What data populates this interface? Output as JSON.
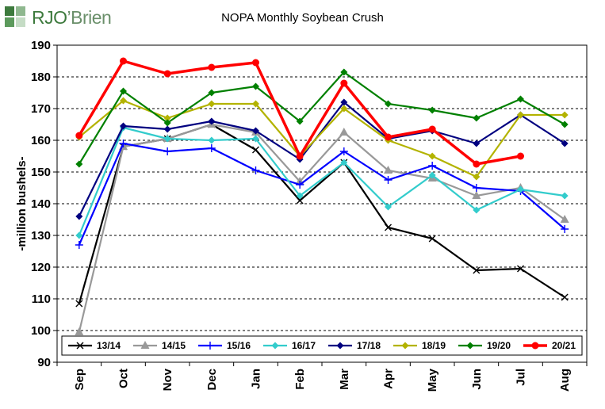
{
  "brand": {
    "logo_text_1": "RJO",
    "logo_text_2": "’Brien",
    "logo_colors": [
      "#3d7a3d",
      "#8fb88f",
      "#5c9a5c",
      "#c5dcc5"
    ]
  },
  "chart_data": {
    "type": "line",
    "title": "NOPA Monthly Soybean Crush",
    "xlabel": "",
    "ylabel": "-million bushels-",
    "categories": [
      "Sep",
      "Oct",
      "Nov",
      "Dec",
      "Jan",
      "Feb",
      "Mar",
      "Apr",
      "May",
      "Jun",
      "Jul",
      "Aug"
    ],
    "ylim": [
      90,
      190
    ],
    "yticks": [
      "90",
      "100",
      "110",
      "120",
      "130",
      "140",
      "150",
      "160",
      "170",
      "180",
      "190"
    ],
    "grid": "horizontal dashed",
    "legend_position": "bottom inside plot",
    "series": [
      {
        "name": "13/14",
        "color": "#000000",
        "marker": "x",
        "values": [
          108.5,
          158,
          160.5,
          165,
          157,
          141,
          153,
          132.5,
          129,
          119,
          119.5,
          110.5
        ]
      },
      {
        "name": "14/15",
        "color": "#999999",
        "marker": "triangle",
        "values": [
          99.5,
          158,
          160.5,
          165,
          162.5,
          147,
          162.5,
          150.5,
          148,
          142.5,
          145,
          135
        ]
      },
      {
        "name": "15/16",
        "color": "#0000ff",
        "marker": "plus",
        "values": [
          127,
          159,
          156.5,
          157.5,
          150.5,
          146,
          156.5,
          147.5,
          152,
          145,
          144,
          132
        ]
      },
      {
        "name": "16/17",
        "color": "#33cccc",
        "marker": "diamond",
        "values": [
          130,
          164,
          160.5,
          160,
          160.5,
          142.5,
          153,
          139,
          149,
          138,
          144.5,
          142.5
        ]
      },
      {
        "name": "17/18",
        "color": "#000080",
        "marker": "diamond",
        "values": [
          136,
          164.5,
          163.5,
          166,
          163,
          154,
          172,
          160.5,
          163,
          159,
          168,
          159
        ]
      },
      {
        "name": "18/19",
        "color": "#b3b300",
        "marker": "diamond",
        "values": [
          161,
          172.5,
          167,
          171.5,
          171.5,
          155,
          170,
          160,
          155,
          148.5,
          168,
          168
        ]
      },
      {
        "name": "19/20",
        "color": "#008000",
        "marker": "diamond",
        "values": [
          152.5,
          175.5,
          165.5,
          175,
          177,
          166,
          181.5,
          171.5,
          169.5,
          167,
          173,
          165
        ]
      },
      {
        "name": "20/21",
        "color": "#ff0000",
        "marker": "circle",
        "values": [
          161.5,
          185,
          181,
          183,
          184.5,
          155,
          178,
          161,
          163.5,
          152.5,
          155,
          null
        ]
      }
    ]
  }
}
